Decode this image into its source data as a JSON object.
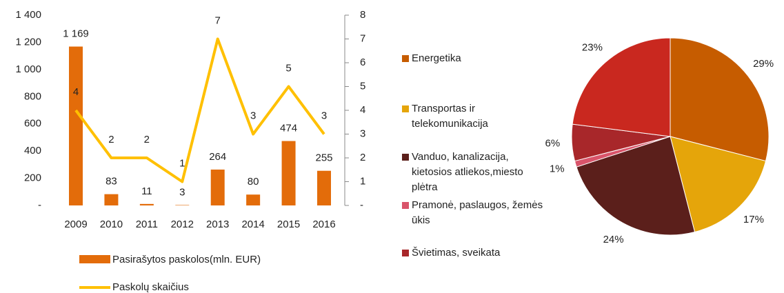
{
  "chart_data": [
    {
      "type": "bar-line",
      "categories": [
        "2009",
        "2010",
        "2011",
        "2012",
        "2013",
        "2014",
        "2015",
        "2016"
      ],
      "series": [
        {
          "name": "Pasirašytos paskolos(mln. EUR)",
          "color": "#e36c0a",
          "type": "bar",
          "values": [
            1169,
            83,
            11,
            3,
            264,
            80,
            474,
            255
          ],
          "value_labels": [
            "1 169",
            "83",
            "11",
            "3",
            "264",
            "80",
            "474",
            "255"
          ]
        },
        {
          "name": "Paskolų skaičius",
          "color": "#ffc000",
          "type": "line",
          "axis": "y2",
          "values": [
            4,
            2,
            2,
            1,
            7,
            3,
            5,
            3
          ]
        }
      ],
      "ylim": [
        0,
        1400
      ],
      "yticks": [
        {
          "value": 0,
          "label": "-"
        },
        200,
        400,
        600,
        800,
        {
          "value": 1000,
          "label": "1 000"
        },
        {
          "value": 1200,
          "label": "1 200"
        },
        {
          "value": 1400,
          "label": "1 400"
        }
      ],
      "y2lim": [
        0,
        8
      ],
      "y2ticks": [
        {
          "value": 0,
          "label": "-"
        },
        1,
        2,
        3,
        4,
        5,
        6,
        7,
        8
      ]
    },
    {
      "type": "pie",
      "categories": [
        "Energetika",
        "Transportas ir telekomunikacija",
        "Vanduo, kanalizacija, kietosios atliekos,miesto plėtra",
        "Pramonė, paslaugos, žemės ūkis",
        "Švietimas, sveikata",
        null
      ],
      "values": [
        29,
        17,
        24,
        1,
        6,
        23
      ],
      "value_labels": [
        "29%",
        "17%",
        "24%",
        "1%",
        "6%",
        "23%"
      ],
      "colors": [
        "#c65c00",
        "#e5a50a",
        "#5b1f1b",
        "#d9546a",
        "#a8272a",
        "#c9281f"
      ]
    }
  ]
}
